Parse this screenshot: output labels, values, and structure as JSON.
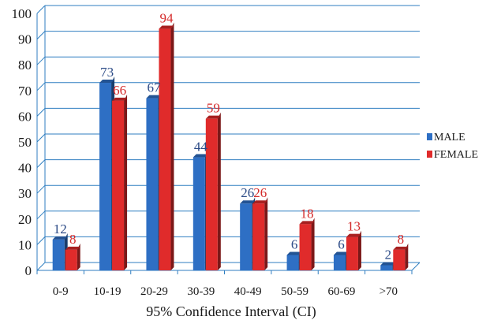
{
  "chart_data": {
    "type": "bar",
    "title": "",
    "xlabel": "95% Confidence Interval (CI)",
    "ylabel": "",
    "categories": [
      "0-9",
      "10-19",
      "20-29",
      "30-39",
      "40-49",
      "50-59",
      "60-69",
      ">70"
    ],
    "ylim": [
      0,
      100
    ],
    "yticks": [
      0,
      10,
      20,
      30,
      40,
      50,
      60,
      70,
      80,
      90,
      100
    ],
    "grid": true,
    "legend_position": "right",
    "series": [
      {
        "name": "MALE",
        "values": [
          12,
          73,
          67,
          44,
          26,
          6,
          6,
          2
        ],
        "color": "#2e6fc4",
        "label_color": "#2b4a86"
      },
      {
        "name": "FEMALE",
        "values": [
          8,
          66,
          94,
          59,
          26,
          18,
          13,
          8
        ],
        "color": "#e02b2b",
        "label_color": "#d42a2a"
      }
    ]
  }
}
